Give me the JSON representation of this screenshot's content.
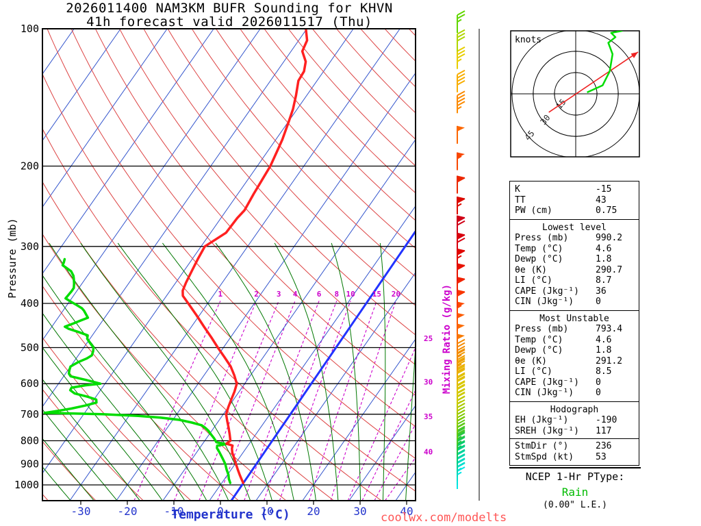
{
  "header": {
    "title_line1": "2026011400 NAM3KM BUFR Sounding for KHVN",
    "title_line2": "41h forecast valid 2026011517 (Thu)"
  },
  "footer": {
    "watermark": "coolwx.com/modelts"
  },
  "ptype": {
    "title": "NCEP 1-Hr PType:",
    "value": "Rain",
    "value_color": "#00bb00",
    "extra": "(0.00\" L.E.)"
  },
  "stats": {
    "indices": {
      "rows": [
        [
          "K",
          "-15"
        ],
        [
          "TT",
          "43"
        ],
        [
          "PW (cm)",
          "0.75"
        ]
      ]
    },
    "lowest_level": {
      "header": "Lowest level",
      "rows": [
        [
          "Press (mb)",
          "990.2"
        ],
        [
          "Temp (°C)",
          "4.6"
        ],
        [
          "Dewp (°C)",
          "1.8"
        ],
        [
          "θe (K)",
          "290.7"
        ],
        [
          "LI (°C)",
          "8.7"
        ],
        [
          "CAPE (Jkg⁻¹)",
          "36"
        ],
        [
          "CIN (Jkg⁻¹)",
          "0"
        ]
      ]
    },
    "most_unstable": {
      "header": "Most Unstable",
      "rows": [
        [
          "Press (mb)",
          "793.4"
        ],
        [
          "Temp (°C)",
          "4.6"
        ],
        [
          "Dewp (°C)",
          "1.8"
        ],
        [
          "θe (K)",
          "291.2"
        ],
        [
          "LI (°C)",
          "8.5"
        ],
        [
          "CAPE (Jkg⁻¹)",
          "0"
        ],
        [
          "CIN (Jkg⁻¹)",
          "0"
        ]
      ]
    },
    "hodograph": {
      "header": "Hodograph",
      "rows": [
        [
          "EH (Jkg⁻¹)",
          "-190"
        ],
        [
          "SREH (Jkg⁻¹)",
          "117"
        ]
      ],
      "rows2": [
        [
          "StmDir (°)",
          "236"
        ],
        [
          "StmSpd (kt)",
          "53"
        ]
      ]
    }
  },
  "chart_data": {
    "type": "skewt_log_p_sounding",
    "title": "2026011400 NAM3KM BUFR Sounding for KHVN",
    "subtitle": "41h forecast valid 2026011517 (Thu)",
    "pressure_axis": {
      "label": "Pressure (mb)",
      "ticks": [
        100,
        200,
        300,
        400,
        500,
        600,
        700,
        800,
        900,
        1000
      ],
      "range": [
        100,
        1083
      ]
    },
    "temp_axis": {
      "label": "Temperature (°C)",
      "ticks": [
        -30,
        -20,
        -10,
        0,
        10,
        20,
        30,
        40
      ],
      "unit": "°C"
    },
    "mixing_ratio": {
      "label": "Mixing Ratio (g/kg)",
      "main_values": [
        1,
        2,
        3,
        4,
        6,
        8,
        10,
        15,
        20
      ],
      "edge_values": [
        {
          "value": 25,
          "p_exit": 477
        },
        {
          "value": 30,
          "p_exit": 594
        },
        {
          "value": 35,
          "p_exit": 708
        },
        {
          "value": 40,
          "p_exit": 846
        }
      ],
      "color": "#cc00cc"
    },
    "isotherms": {
      "min": -110,
      "max": 40,
      "step": 10,
      "color": "#3355cc"
    },
    "dry_adiabats": {
      "min": -40,
      "max": 220,
      "step": 10,
      "color": "#dd4444"
    },
    "moist_adiabats": {
      "starts": [
        -35,
        -30,
        -25,
        -20,
        -15,
        -10,
        -5,
        0,
        5,
        10,
        15,
        20,
        25,
        30,
        35,
        40
      ],
      "color": "#007700"
    },
    "temperature_profile": [
      [
        990,
        4.6
      ],
      [
        970,
        3.6
      ],
      [
        950,
        2.6
      ],
      [
        925,
        1.4
      ],
      [
        900,
        0.2
      ],
      [
        875,
        -1.0
      ],
      [
        850,
        -2.3
      ],
      [
        832,
        -3.0
      ],
      [
        820,
        -3.3
      ],
      [
        812,
        -4.9
      ],
      [
        800,
        -4.5
      ],
      [
        775,
        -5.6
      ],
      [
        750,
        -6.8
      ],
      [
        725,
        -8.1
      ],
      [
        700,
        -9.4
      ],
      [
        675,
        -10.0
      ],
      [
        650,
        -10.5
      ],
      [
        625,
        -11.0
      ],
      [
        600,
        -11.7
      ],
      [
        575,
        -13.5
      ],
      [
        550,
        -15.6
      ],
      [
        525,
        -18.3
      ],
      [
        500,
        -21.2
      ],
      [
        475,
        -24.1
      ],
      [
        450,
        -27.3
      ],
      [
        425,
        -30.6
      ],
      [
        400,
        -34.2
      ],
      [
        385,
        -36.5
      ],
      [
        375,
        -37.3
      ],
      [
        360,
        -37.8
      ],
      [
        340,
        -38.3
      ],
      [
        320,
        -38.8
      ],
      [
        300,
        -39.2
      ],
      [
        280,
        -36.7
      ],
      [
        260,
        -36.5
      ],
      [
        250,
        -36.1
      ],
      [
        230,
        -36.6
      ],
      [
        200,
        -37.2
      ],
      [
        185,
        -38.0
      ],
      [
        175,
        -38.6
      ],
      [
        160,
        -39.9
      ],
      [
        150,
        -40.9
      ],
      [
        140,
        -42.3
      ],
      [
        130,
        -44.0
      ],
      [
        124,
        -44.2
      ],
      [
        118,
        -45.3
      ],
      [
        112,
        -47.6
      ],
      [
        106,
        -48.2
      ],
      [
        100,
        -50.2
      ]
    ],
    "dewpoint_profile": [
      [
        990,
        1.8
      ],
      [
        970,
        0.9
      ],
      [
        950,
        0.2
      ],
      [
        925,
        -1.0
      ],
      [
        900,
        -2.1
      ],
      [
        875,
        -3.5
      ],
      [
        850,
        -5.0
      ],
      [
        830,
        -6.3
      ],
      [
        820,
        -6.6
      ],
      [
        814,
        -4.9
      ],
      [
        806,
        -7.3
      ],
      [
        790,
        -8.4
      ],
      [
        775,
        -9.6
      ],
      [
        760,
        -10.8
      ],
      [
        750,
        -11.8
      ],
      [
        740,
        -13.0
      ],
      [
        730,
        -15.5
      ],
      [
        720,
        -18.6
      ],
      [
        712,
        -23.0
      ],
      [
        706,
        -28.0
      ],
      [
        700,
        -36.0
      ],
      [
        695,
        -48.6
      ],
      [
        688,
        -46.0
      ],
      [
        680,
        -43.5
      ],
      [
        670,
        -41.0
      ],
      [
        660,
        -39.0
      ],
      [
        650,
        -39.5
      ],
      [
        640,
        -42.0
      ],
      [
        630,
        -45.1
      ],
      [
        620,
        -46.5
      ],
      [
        612,
        -46.6
      ],
      [
        605,
        -44.0
      ],
      [
        600,
        -41.0
      ],
      [
        592,
        -43.5
      ],
      [
        585,
        -46.0
      ],
      [
        578,
        -48.5
      ],
      [
        570,
        -49.3
      ],
      [
        560,
        -49.7
      ],
      [
        550,
        -50.0
      ],
      [
        538,
        -49.0
      ],
      [
        528,
        -47.7
      ],
      [
        520,
        -47.1
      ],
      [
        510,
        -47.4
      ],
      [
        500,
        -47.9
      ],
      [
        488,
        -49.4
      ],
      [
        478,
        -50.6
      ],
      [
        470,
        -51.0
      ],
      [
        462,
        -53.5
      ],
      [
        455,
        -56.0
      ],
      [
        450,
        -57.2
      ],
      [
        443,
        -55.9
      ],
      [
        436,
        -54.7
      ],
      [
        430,
        -53.6
      ],
      [
        422,
        -54.6
      ],
      [
        415,
        -55.5
      ],
      [
        410,
        -56.3
      ],
      [
        403,
        -58.0
      ],
      [
        396,
        -59.8
      ],
      [
        390,
        -61.3
      ],
      [
        383,
        -61.2
      ],
      [
        376,
        -61.1
      ],
      [
        370,
        -61.1
      ],
      [
        362,
        -61.7
      ],
      [
        354,
        -62.4
      ],
      [
        348,
        -63.0
      ],
      [
        340,
        -64.2
      ],
      [
        334,
        -65.8
      ],
      [
        330,
        -66.9
      ],
      [
        325,
        -67.1
      ],
      [
        320,
        -67.4
      ]
    ],
    "parcel_line": [
      [
        1083,
        4.7
      ],
      [
        278,
        3.8
      ]
    ],
    "profile_colors": {
      "temperature": "#ff2020",
      "dewpoint": "#00dd00",
      "parcel": "#2233ff"
    },
    "wind_barbs": [
      [
        1000,
        15,
        "#00e6e6"
      ],
      [
        980,
        15,
        "#00e2da"
      ],
      [
        960,
        18,
        "#00decc"
      ],
      [
        940,
        18,
        "#00dabe"
      ],
      [
        920,
        20,
        "#00d6a8"
      ],
      [
        900,
        20,
        "#00d292"
      ],
      [
        880,
        22,
        "#00ce7a"
      ],
      [
        860,
        25,
        "#12ca5e"
      ],
      [
        840,
        25,
        "#22c646"
      ],
      [
        820,
        25,
        "#32c632"
      ],
      [
        800,
        28,
        "#46ca20"
      ],
      [
        775,
        30,
        "#62ca10"
      ],
      [
        750,
        30,
        "#7eca00"
      ],
      [
        725,
        32,
        "#96ca00"
      ],
      [
        700,
        35,
        "#aeca00"
      ],
      [
        675,
        35,
        "#c2ca00"
      ],
      [
        650,
        38,
        "#d2ca00"
      ],
      [
        625,
        40,
        "#dcc600"
      ],
      [
        600,
        40,
        "#e4ba00"
      ],
      [
        575,
        42,
        "#ecaa00"
      ],
      [
        550,
        45,
        "#f09a00"
      ],
      [
        525,
        45,
        "#f48a00"
      ],
      [
        500,
        48,
        "#f87a00"
      ],
      [
        475,
        50,
        "#fc6a00"
      ],
      [
        450,
        52,
        "#fc5a00"
      ],
      [
        425,
        55,
        "#fc4a00"
      ],
      [
        400,
        58,
        "#f83600"
      ],
      [
        375,
        60,
        "#f02200"
      ],
      [
        350,
        62,
        "#e81200"
      ],
      [
        325,
        65,
        "#e00600"
      ],
      [
        300,
        68,
        "#d8000e"
      ],
      [
        275,
        70,
        "#d00016"
      ],
      [
        250,
        65,
        "#dc0a00"
      ],
      [
        225,
        60,
        "#ec2600"
      ],
      [
        200,
        55,
        "#f84600"
      ],
      [
        175,
        50,
        "#fc6600"
      ],
      [
        150,
        45,
        "#fc8a00"
      ],
      [
        135,
        40,
        "#f8ae00"
      ],
      [
        120,
        35,
        "#e8ce00"
      ],
      [
        110,
        30,
        "#b0d600"
      ],
      [
        100,
        25,
        "#62d600"
      ]
    ],
    "hodograph": {
      "unit": "knots",
      "rings_kt": [
        15,
        30,
        45
      ],
      "trace_uv_kt": [
        [
          8,
          1
        ],
        [
          19,
          6
        ],
        [
          24,
          16
        ],
        [
          26,
          28
        ],
        [
          23,
          36
        ],
        [
          28,
          40
        ],
        [
          25,
          43
        ],
        [
          33,
          44.5
        ]
      ],
      "storm_arrow_uv_kt": {
        "from": [
          -19,
          -13
        ],
        "to": [
          44,
          29.5
        ]
      },
      "trace_color": "#00dd00",
      "arrow_color": "#ee2222"
    }
  }
}
